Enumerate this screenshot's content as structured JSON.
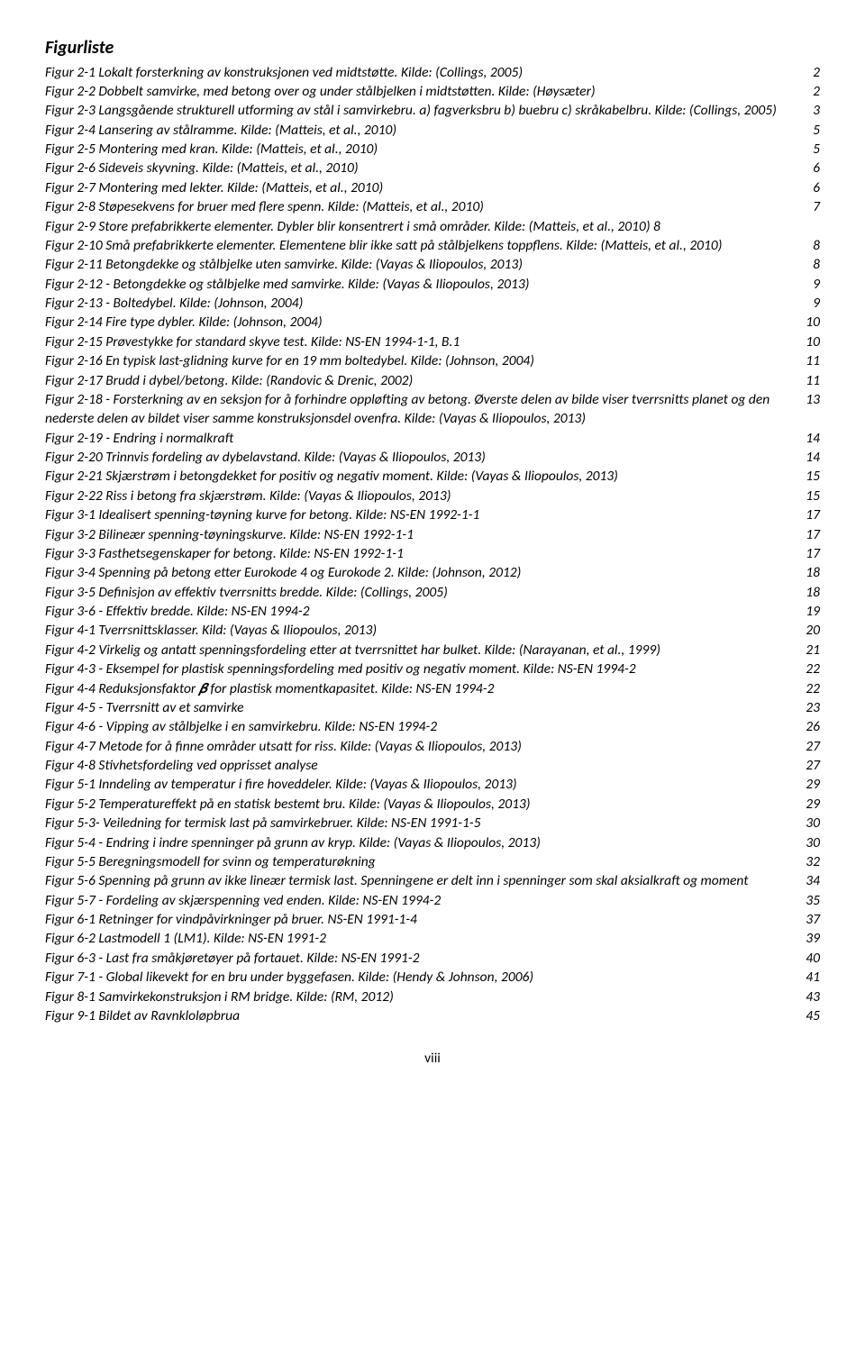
{
  "title": "Figurliste",
  "footer": "viii",
  "entries": [
    {
      "label": "Figur 2-1 Lokalt forsterkning av konstruksjonen ved midtstøtte. Kilde: (Collings, 2005)",
      "page": "2"
    },
    {
      "label": "Figur 2-2 Dobbelt samvirke, med betong over og under stålbjelken i midtstøtten. Kilde: (Høysæter)",
      "page": "2"
    },
    {
      "label": "Figur 2-3 Langsgående strukturell utforming av stål i samvirkebru. a) fagverksbru b) buebru c) skråkabelbru. Kilde: (Collings, 2005)",
      "page": "3"
    },
    {
      "label": "Figur 2-4 Lansering av stålramme. Kilde: (Matteis, et al., 2010)",
      "page": "5"
    },
    {
      "label": "Figur 2-5 Montering med kran. Kilde: (Matteis, et al., 2010)",
      "page": "5"
    },
    {
      "label": "Figur 2-6 Sideveis skyvning. Kilde: (Matteis, et al., 2010)",
      "page": "6"
    },
    {
      "label": "Figur 2-7 Montering med lekter. Kilde: (Matteis, et al., 2010)",
      "page": "6"
    },
    {
      "label": "Figur 2-8 Støpesekvens for bruer med flere spenn. Kilde: (Matteis, et al., 2010)",
      "page": "7"
    },
    {
      "label": "Figur 2-9 Store prefabrikkerte elementer. Dybler blir konsentrert i små områder. Kilde: (Matteis, et al., 2010) 8",
      "page": ""
    },
    {
      "label": "Figur 2-10 Små prefabrikkerte elementer. Elementene blir ikke satt på stålbjelkens toppflens. Kilde: (Matteis, et al., 2010)",
      "page": "8"
    },
    {
      "label": "Figur 2-11 Betongdekke og stålbjelke uten samvirke. Kilde: (Vayas & Iliopoulos, 2013)",
      "page": "8"
    },
    {
      "label": "Figur 2-12 - Betongdekke og stålbjelke med samvirke. Kilde: (Vayas & Iliopoulos, 2013)",
      "page": "9"
    },
    {
      "label": "Figur 2-13 - Boltedybel. Kilde: (Johnson, 2004)",
      "page": "9"
    },
    {
      "label": "Figur 2-14 Fire type dybler. Kilde: (Johnson, 2004)",
      "page": "10"
    },
    {
      "label": "Figur 2-15 Prøvestykke for standard skyve test. Kilde: NS-EN 1994-1-1, B.1",
      "page": "10"
    },
    {
      "label": "Figur 2-16 En typisk last-glidning kurve for en 19 mm boltedybel. Kilde: (Johnson, 2004)",
      "page": "11"
    },
    {
      "label": "Figur 2-17 Brudd i dybel/betong. Kilde: (Randovic & Drenic, 2002)",
      "page": "11"
    },
    {
      "label": "Figur 2-18 - Forsterkning av en seksjon for å forhindre oppløfting av betong. Øverste delen av bilde viser tverrsnitts planet og den nederste delen av bildet viser samme konstruksjonsdel ovenfra. Kilde: (Vayas & Iliopoulos, 2013)",
      "page": "13"
    },
    {
      "label": "Figur 2-19 - Endring i normalkraft",
      "page": "14"
    },
    {
      "label": "Figur 2-20 Trinnvis fordeling av dybelavstand. Kilde: (Vayas & Iliopoulos, 2013)",
      "page": "14"
    },
    {
      "label": "Figur 2-21 Skjærstrøm i betongdekket for positiv og negativ moment. Kilde: (Vayas & Iliopoulos, 2013)",
      "page": "15"
    },
    {
      "label": "Figur 2-22 Riss i betong fra skjærstrøm. Kilde: (Vayas & Iliopoulos, 2013)",
      "page": "15"
    },
    {
      "label": "Figur 3-1 Idealisert spenning-tøyning kurve for betong. Kilde: NS-EN 1992-1-1",
      "page": "17"
    },
    {
      "label": "Figur 3-2 Bilineær spenning-tøyningskurve. Kilde: NS-EN 1992-1-1",
      "page": "17"
    },
    {
      "label": "Figur 3-3 Fasthetsegenskaper for betong. Kilde: NS-EN 1992-1-1",
      "page": "17"
    },
    {
      "label": "Figur 3-4 Spenning på betong etter Eurokode 4 og Eurokode 2. Kilde: (Johnson, 2012)",
      "page": "18"
    },
    {
      "label": "Figur 3-5 Definisjon av effektiv tverrsnitts bredde. Kilde: (Collings, 2005)",
      "page": "18"
    },
    {
      "label": "Figur 3-6 - Effektiv bredde. Kilde: NS-EN 1994-2",
      "page": "19"
    },
    {
      "label": "Figur 4-1 Tverrsnittsklasser. Kild: (Vayas & Iliopoulos, 2013)",
      "page": "20"
    },
    {
      "label": "Figur 4-2 Virkelig og antatt spenningsfordeling etter at tverrsnittet har bulket. Kilde: (Narayanan, et al., 1999)",
      "page": "21"
    },
    {
      "label": "Figur 4-3 - Eksempel for plastisk spenningsfordeling med positiv og negativ moment. Kilde: NS-EN 1994-2",
      "page": "22"
    },
    {
      "label": "Figur 4-4 Reduksjonsfaktor 𝜷 for plastisk momentkapasitet. Kilde: NS-EN 1994-2",
      "page": "22"
    },
    {
      "label": "Figur 4-5 - Tverrsnitt av et samvirke",
      "page": "23"
    },
    {
      "label": "Figur 4-6 - Vipping av stålbjelke i en samvirkebru. Kilde: NS-EN 1994-2",
      "page": "26"
    },
    {
      "label": "Figur 4-7 Metode for å finne områder utsatt for riss. Kilde: (Vayas & Iliopoulos, 2013)",
      "page": "27"
    },
    {
      "label": "Figur 4-8 Stivhetsfordeling ved opprisset analyse",
      "page": "27"
    },
    {
      "label": "Figur 5-1 Inndeling av temperatur i fire hoveddeler. Kilde: (Vayas & Iliopoulos, 2013)",
      "page": "29"
    },
    {
      "label": "Figur 5-2 Temperatureffekt på en statisk bestemt bru. Kilde: (Vayas & Iliopoulos, 2013)",
      "page": "29"
    },
    {
      "label": "Figur 5-3- Veiledning for termisk last på samvirkebruer. Kilde: NS-EN 1991-1-5",
      "page": "30"
    },
    {
      "label": "Figur 5-4 - Endring i indre spenninger på grunn av kryp. Kilde: (Vayas & Iliopoulos, 2013)",
      "page": "30"
    },
    {
      "label": "Figur 5-5 Beregningsmodell for svinn og temperaturøkning",
      "page": "32"
    },
    {
      "label": "Figur 5-6 Spenning på grunn av ikke lineær termisk last. Spenningene er delt inn i spenninger som skal aksialkraft og moment",
      "page": "34"
    },
    {
      "label": "Figur 5-7 - Fordeling av skjærspenning ved enden. Kilde: NS-EN 1994-2",
      "page": "35"
    },
    {
      "label": "Figur 6-1 Retninger for vindpåvirkninger på bruer. NS-EN 1991-1-4",
      "page": "37"
    },
    {
      "label": "Figur 6-2 Lastmodell 1 (LM1). Kilde: NS-EN 1991-2",
      "page": "39"
    },
    {
      "label": "Figur 6-3 - Last fra småkjøretøyer på fortauet. Kilde: NS-EN 1991-2",
      "page": "40"
    },
    {
      "label": "Figur 7-1 - Global likevekt for en bru under byggefasen. Kilde: (Hendy & Johnson, 2006)",
      "page": "41"
    },
    {
      "label": "Figur 8-1 Samvirkekonstruksjon i RM bridge. Kilde: (RM, 2012)",
      "page": "43"
    },
    {
      "label": "Figur 9-1 Bildet av Ravnkloløpbrua",
      "page": "45"
    }
  ]
}
